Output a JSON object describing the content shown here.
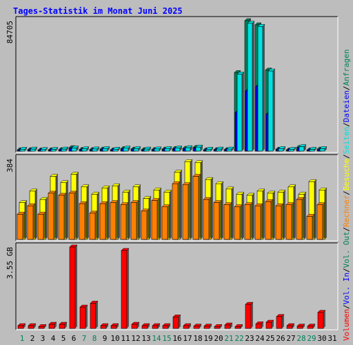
{
  "chart_data": {
    "title": "Tages-Statistik im Monat Juni 2025",
    "days": [
      "1",
      "2",
      "3",
      "4",
      "5",
      "6",
      "7",
      "8",
      "9",
      "10",
      "11",
      "12",
      "13",
      "14",
      "15",
      "16",
      "17",
      "18",
      "19",
      "20",
      "21",
      "22",
      "23",
      "24",
      "25",
      "26",
      "27",
      "28",
      "29",
      "30",
      "31"
    ],
    "weekend_days": [
      "1",
      "7",
      "8",
      "14",
      "15",
      "21",
      "22",
      "28",
      "29"
    ],
    "colors": {
      "title": "#0000ff",
      "weekday": "#000000",
      "weekend": "#00805a",
      "background": "#bdbdbd",
      "plot_background": "#c0c0c0",
      "anfragen": "#00805a",
      "dateien": "#0000ff",
      "seiten": "#00e0e0",
      "besuche": "#ffff00",
      "rechner": "#ff8000",
      "volumen": "#ff0000"
    },
    "panels": [
      {
        "type": "bar",
        "ymax_label": "84705",
        "ymax": 84705,
        "series": [
          {
            "name": "Anfragen",
            "values": [
              800,
              900,
              700,
              800,
              900,
              2200,
              1100,
              1000,
              1300,
              800,
              1600,
              1300,
              900,
              1000,
              1300,
              1700,
              1800,
              2400,
              800,
              900,
              900,
              51000,
              84705,
              82000,
              52600,
              1200,
              700,
              2400,
              700,
              1300,
              0
            ]
          },
          {
            "name": "Dateien",
            "values": [
              500,
              600,
              400,
              500,
              600,
              1500,
              700,
              600,
              800,
              500,
              1000,
              800,
              500,
              600,
              800,
              1100,
              1200,
              1600,
              500,
              600,
              600,
              25000,
              39000,
              42000,
              24000,
              800,
              400,
              1500,
              400,
              800,
              0
            ]
          },
          {
            "name": "Seiten",
            "values": [
              1200,
              1300,
              1000,
              1100,
              1300,
              2000,
              1500,
              1400,
              1600,
              1200,
              1900,
              1600,
              1300,
              1400,
              1600,
              2000,
              2200,
              2600,
              1200,
              1300,
              1300,
              50000,
              83000,
              81000,
              52000,
              1600,
              1100,
              2900,
              1100,
              1600,
              0
            ]
          }
        ]
      },
      {
        "type": "bar",
        "ymax_label": "384",
        "ymax": 384,
        "series": [
          {
            "name": "Besuche",
            "values": [
              175,
              230,
              190,
              300,
              270,
              310,
              250,
              215,
              245,
              255,
              225,
              250,
              195,
              235,
              225,
              320,
              370,
              365,
              285,
              265,
              240,
              215,
              210,
              230,
              220,
              225,
              250,
              215,
              275,
              235,
              0
            ]
          },
          {
            "name": "Rechner",
            "values": [
              120,
              160,
              120,
              220,
              210,
              220,
              170,
              125,
              170,
              175,
              165,
              175,
              135,
              185,
              155,
              265,
              260,
              300,
              190,
              175,
              165,
              155,
              165,
              160,
              180,
              160,
              165,
              190,
              110,
              165,
              0
            ]
          }
        ]
      },
      {
        "type": "bar",
        "ymax_label": "3.55 GB",
        "ymax": 3.55,
        "series": [
          {
            "name": "Volumen",
            "values": [
              0.12,
              0.12,
              0.08,
              0.18,
              0.18,
              3.55,
              0.93,
              1.1,
              0.12,
              0.12,
              3.4,
              0.18,
              0.12,
              0.12,
              0.12,
              0.5,
              0.12,
              0.1,
              0.1,
              0.08,
              0.15,
              0.08,
              1.05,
              0.2,
              0.27,
              0.52,
              0.12,
              0.1,
              0.1,
              0.7,
              0
            ]
          }
        ]
      }
    ],
    "legend": {
      "top": [
        {
          "label": "Anfragen",
          "color_key": "anfragen"
        },
        {
          "label": "Dateien",
          "color_key": "dateien"
        },
        {
          "label": "Seiten",
          "color_key": "seiten"
        },
        {
          "label": "Besuche",
          "color_key": "besuche"
        }
      ],
      "bottom": [
        {
          "label": "Rechner",
          "color_key": "rechner"
        },
        {
          "label": "Vol. Out",
          "color_key": "anfragen"
        },
        {
          "label": "Vol. In",
          "color_key": "dateien"
        },
        {
          "label": "Volumen",
          "color_key": "volumen"
        }
      ],
      "separator": "/"
    }
  }
}
